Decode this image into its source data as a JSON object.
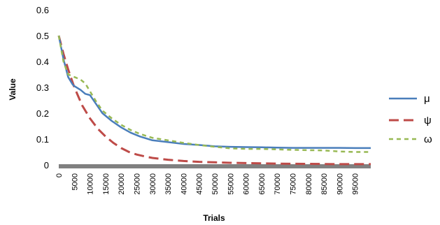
{
  "chart_data": {
    "type": "line",
    "title": "",
    "xlabel": "Trials",
    "ylabel": "Value",
    "xlim": [
      0,
      99999
    ],
    "ylim": [
      0,
      0.6
    ],
    "yticks": [
      "0",
      "0.1",
      "0.2",
      "0.3",
      "0.4",
      "0.5",
      "0.6"
    ],
    "xticks": [
      "0",
      "5000",
      "10000",
      "15000",
      "20000",
      "25000",
      "30000",
      "35000",
      "40000",
      "45000",
      "50000",
      "55000",
      "60000",
      "65000",
      "70000",
      "75000",
      "80000",
      "85000",
      "90000",
      "95000"
    ],
    "grid": false,
    "legend_position": "right",
    "series": [
      {
        "name": "μ",
        "color": "#4a7ebb",
        "style": "solid",
        "x": [
          0,
          1500,
          3000,
          4500,
          5000,
          7000,
          8500,
          10000,
          12000,
          14000,
          17000,
          20000,
          23000,
          26000,
          30000,
          35000,
          40000,
          45000,
          50000,
          55000,
          60000,
          65000,
          70000,
          75000,
          80000,
          85000,
          90000,
          95000,
          99999
        ],
        "values": [
          0.5,
          0.41,
          0.34,
          0.31,
          0.305,
          0.29,
          0.275,
          0.27,
          0.235,
          0.2,
          0.17,
          0.145,
          0.125,
          0.11,
          0.095,
          0.088,
          0.081,
          0.077,
          0.072,
          0.07,
          0.069,
          0.068,
          0.067,
          0.066,
          0.066,
          0.066,
          0.066,
          0.065,
          0.065
        ]
      },
      {
        "name": "ψ",
        "color": "#be4b48",
        "style": "dash",
        "x": [
          0,
          1500,
          3000,
          5000,
          7500,
          10000,
          12500,
          15000,
          17500,
          20000,
          22500,
          25000,
          27500,
          30000,
          35000,
          40000,
          45000,
          50000,
          55000,
          60000,
          70000,
          80000,
          90000,
          99999
        ],
        "values": [
          0.5,
          0.43,
          0.37,
          0.3,
          0.23,
          0.18,
          0.14,
          0.11,
          0.085,
          0.065,
          0.05,
          0.04,
          0.033,
          0.027,
          0.02,
          0.015,
          0.012,
          0.01,
          0.008,
          0.007,
          0.005,
          0.004,
          0.003,
          0.003
        ]
      },
      {
        "name": "ω",
        "color": "#98b954",
        "style": "shortdash",
        "x": [
          0,
          1500,
          3000,
          5000,
          7000,
          8500,
          10000,
          12000,
          14000,
          17000,
          20000,
          23000,
          26000,
          30000,
          35000,
          40000,
          45000,
          50000,
          55000,
          60000,
          65000,
          70000,
          75000,
          80000,
          85000,
          90000,
          95000,
          99999
        ],
        "values": [
          0.5,
          0.4,
          0.35,
          0.34,
          0.33,
          0.315,
          0.285,
          0.245,
          0.21,
          0.18,
          0.155,
          0.135,
          0.12,
          0.105,
          0.095,
          0.085,
          0.077,
          0.07,
          0.064,
          0.062,
          0.062,
          0.06,
          0.058,
          0.057,
          0.056,
          0.052,
          0.05,
          0.05
        ]
      }
    ]
  }
}
